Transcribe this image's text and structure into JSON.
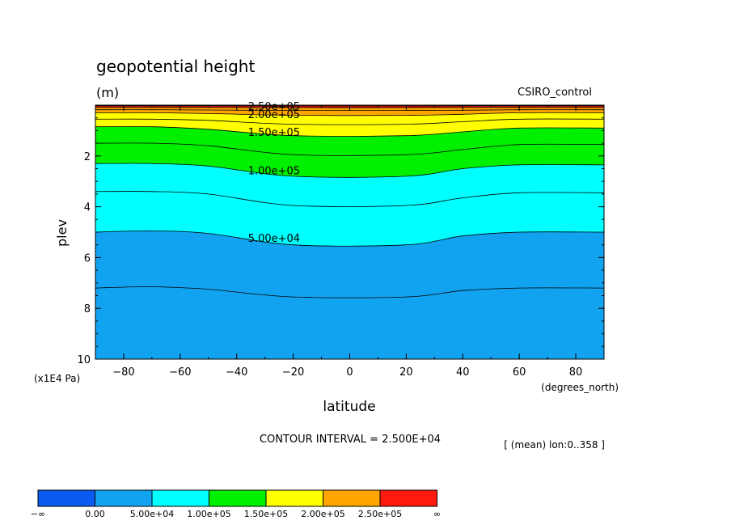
{
  "chart_data": {
    "type": "contour",
    "title": "geopotential height",
    "units": "(m)",
    "dataset": "CSIRO_control",
    "xlabel": "latitude",
    "xunits": "(degrees_north)",
    "ylabel": "plev",
    "yunits": "(x1E4 Pa)",
    "xlim": [
      -90,
      90
    ],
    "ylim": [
      0,
      10
    ],
    "x_ticks": [
      -80,
      -60,
      -40,
      -20,
      0,
      20,
      40,
      60,
      80
    ],
    "x_tick_labels": [
      "−80",
      "−60",
      "−40",
      "−20",
      "0",
      "20",
      "40",
      "60",
      "80"
    ],
    "y_ticks": [
      2,
      4,
      6,
      8,
      10
    ],
    "y_tick_labels": [
      "2",
      "4",
      "6",
      "8",
      "10"
    ],
    "contour_interval_text": "CONTOUR INTERVAL = 2.500E+04",
    "mean_note": "[ (mean) lon:0..358 ]",
    "contour_labels": [
      "2.50e+05",
      "2.00e+05",
      "1.50e+05",
      "1.00e+05",
      "5.00e+04"
    ],
    "fill_bands": [
      {
        "lower": 0,
        "upper": 50000,
        "color": "#12A3F0"
      },
      {
        "lower": 50000,
        "upper": 100000,
        "color": "#00FFFF"
      },
      {
        "lower": 100000,
        "upper": 150000,
        "color": "#00F000"
      },
      {
        "lower": 150000,
        "upper": 200000,
        "color": "#FFFF00"
      },
      {
        "lower": 200000,
        "upper": 250000,
        "color": "#FFA500"
      },
      {
        "lower": 250000,
        "upper": null,
        "color": "#FF1A10"
      }
    ],
    "contours": [
      {
        "level": 25000,
        "x": [
          -90,
          -70,
          -50,
          -20,
          20,
          40,
          60,
          90
        ],
        "plev": [
          7.2,
          7.15,
          7.25,
          7.55,
          7.55,
          7.3,
          7.2,
          7.2
        ]
      },
      {
        "level": 50000,
        "x": [
          -90,
          -70,
          -50,
          -20,
          20,
          40,
          60,
          90
        ],
        "plev": [
          5.0,
          4.95,
          5.05,
          5.5,
          5.5,
          5.15,
          5.0,
          5.0
        ]
      },
      {
        "level": 75000,
        "x": [
          -90,
          -70,
          -50,
          -20,
          20,
          40,
          60,
          90
        ],
        "plev": [
          3.4,
          3.4,
          3.5,
          3.95,
          3.95,
          3.65,
          3.45,
          3.45
        ]
      },
      {
        "level": 100000,
        "x": [
          -90,
          -70,
          -50,
          -20,
          20,
          40,
          60,
          90
        ],
        "plev": [
          2.3,
          2.3,
          2.4,
          2.8,
          2.8,
          2.5,
          2.35,
          2.35
        ]
      },
      {
        "level": 125000,
        "x": [
          -90,
          -70,
          -50,
          -20,
          20,
          40,
          60,
          90
        ],
        "plev": [
          1.5,
          1.5,
          1.6,
          1.95,
          1.95,
          1.75,
          1.55,
          1.55
        ]
      },
      {
        "level": 150000,
        "x": [
          -90,
          -70,
          -50,
          -20,
          20,
          40,
          60,
          90
        ],
        "plev": [
          0.85,
          0.85,
          0.95,
          1.2,
          1.2,
          1.05,
          0.9,
          0.9
        ]
      },
      {
        "level": 175000,
        "x": [
          -90,
          -70,
          -50,
          -20,
          20,
          40,
          60,
          90
        ],
        "plev": [
          0.55,
          0.55,
          0.6,
          0.75,
          0.75,
          0.65,
          0.55,
          0.55
        ]
      },
      {
        "level": 200000,
        "x": [
          -90,
          -70,
          -50,
          -20,
          20,
          40,
          60,
          90
        ],
        "plev": [
          0.3,
          0.3,
          0.33,
          0.4,
          0.4,
          0.36,
          0.3,
          0.3
        ]
      },
      {
        "level": 225000,
        "x": [
          -90,
          -70,
          -50,
          -20,
          20,
          40,
          60,
          90
        ],
        "plev": [
          0.18,
          0.18,
          0.19,
          0.21,
          0.21,
          0.2,
          0.18,
          0.18
        ]
      },
      {
        "level": 250000,
        "x": [
          -90,
          -70,
          -50,
          -20,
          20,
          40,
          60,
          90
        ],
        "plev": [
          0.09,
          0.09,
          0.09,
          0.1,
          0.1,
          0.09,
          0.09,
          0.09
        ]
      },
      {
        "level": 275000,
        "x": [
          -90,
          -70,
          -50,
          -20,
          20,
          40,
          60,
          90
        ],
        "plev": [
          0.03,
          0.03,
          0.03,
          0.035,
          0.035,
          0.03,
          0.03,
          0.03
        ]
      }
    ],
    "colorbar": {
      "colors": [
        "#0A5AF0",
        "#12A3F0",
        "#00FFFF",
        "#00F000",
        "#FFFF00",
        "#FFA500",
        "#FF1A10"
      ],
      "labels": [
        "−∞",
        "0.00",
        "5.00e+04",
        "1.00e+05",
        "1.50e+05",
        "2.00e+05",
        "2.50e+05",
        "∞"
      ]
    },
    "grid": false,
    "legend": "bottom-left colorbar"
  }
}
